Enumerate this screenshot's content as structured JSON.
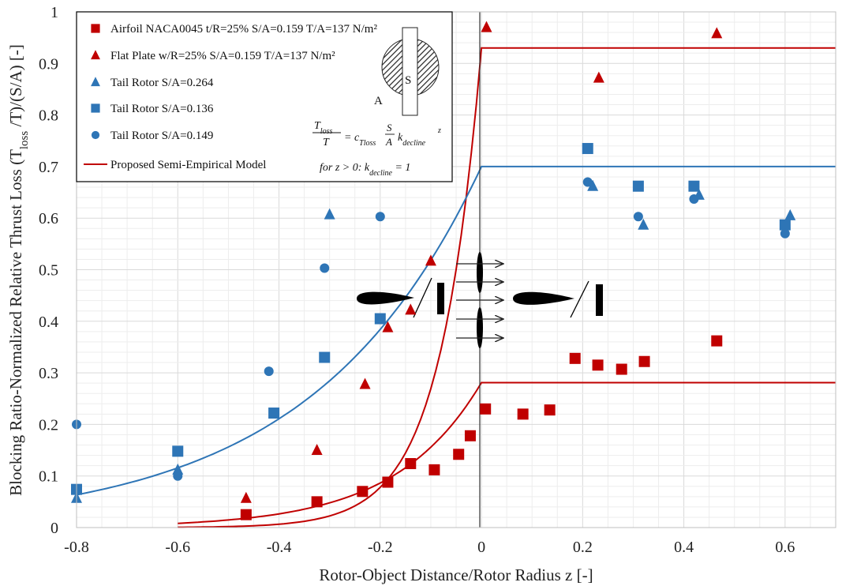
{
  "chart_data": {
    "type": "scatter",
    "xlabel": "Rotor-Object Distance/Rotor Radius z [-]",
    "ylabel_prefix": "Blocking Ratio-Normalized Relative Thrust Loss (T",
    "ylabel_sub": "loss",
    "ylabel_suffix": " /T)/(S/A) [-]",
    "xlim": [
      -0.8,
      0.7
    ],
    "ylim": [
      0,
      1
    ],
    "x_ticks": [
      -0.8,
      -0.6,
      -0.4,
      -0.2,
      0,
      0.2,
      0.4,
      0.6
    ],
    "x_tick_labels": [
      "-0.8",
      "-0.6",
      "-0.4",
      "-0.2",
      "0",
      "0.2",
      "0.4",
      "0.6"
    ],
    "y_ticks": [
      0,
      0.1,
      0.2,
      0.3,
      0.4,
      0.5,
      0.6,
      0.7,
      0.8,
      0.9,
      1
    ],
    "y_tick_labels": [
      "0",
      "0.1",
      "0.2",
      "0.3",
      "0.4",
      "0.5",
      "0.6",
      "0.7",
      "0.8",
      "0.9",
      "1"
    ],
    "grid": true,
    "legend_position": "top-left",
    "colors": {
      "red": "#c00000",
      "blue": "#2e75b6"
    },
    "series": [
      {
        "name": "Airfoil NACA0045 t/R=25% S/A=0.159 T/A=137 N/m²",
        "marker": "square",
        "color": "#c00000",
        "x": [
          -0.465,
          -0.325,
          -0.235,
          -0.185,
          -0.14,
          -0.093,
          -0.045,
          -0.022,
          0.008,
          0.082,
          0.135,
          0.185,
          0.23,
          0.277,
          0.322,
          0.465
        ],
        "y": [
          0.025,
          0.05,
          0.07,
          0.088,
          0.124,
          0.112,
          0.142,
          0.178,
          0.23,
          0.22,
          0.228,
          0.328,
          0.315,
          0.307,
          0.322,
          0.362
        ]
      },
      {
        "name": "Flat Plate w/R=25% S/A=0.159 T/A=137 N/m²",
        "marker": "triangle",
        "color": "#c00000",
        "x": [
          -0.465,
          -0.325,
          -0.23,
          -0.185,
          -0.14,
          -0.1,
          0.01,
          0.232,
          0.465
        ],
        "y": [
          0.057,
          0.15,
          0.278,
          0.388,
          0.422,
          0.517,
          0.97,
          0.872,
          0.958
        ]
      },
      {
        "name": "Tail Rotor S/A=0.264",
        "marker": "triangle",
        "color": "#2e75b6",
        "x": [
          -0.8,
          -0.6,
          -0.3,
          0.22,
          0.32,
          0.43,
          0.61
        ],
        "y": [
          0.057,
          0.112,
          0.607,
          0.662,
          0.587,
          0.645,
          0.605
        ]
      },
      {
        "name": "Tail Rotor S/A=0.136",
        "marker": "square",
        "color": "#2e75b6",
        "x": [
          -0.8,
          -0.6,
          -0.41,
          -0.31,
          -0.2,
          0.21,
          0.31,
          0.42,
          0.6
        ],
        "y": [
          0.074,
          0.148,
          0.222,
          0.33,
          0.405,
          0.735,
          0.662,
          0.662,
          0.587
        ]
      },
      {
        "name": "Tail Rotor S/A=0.149",
        "marker": "circle",
        "color": "#2e75b6",
        "x": [
          -0.8,
          -0.6,
          -0.42,
          -0.31,
          -0.2,
          0.21,
          0.31,
          0.42,
          0.6
        ],
        "y": [
          0.2,
          0.1,
          0.303,
          0.503,
          0.603,
          0.67,
          0.603,
          0.637,
          0.57
        ]
      }
    ],
    "model_curves": {
      "name": "Proposed Semi-Empirical Model",
      "lines": [
        {
          "color": "#c00000",
          "plateau": 0.93,
          "k": 12.4,
          "x_start": -0.6
        },
        {
          "color": "#2e75b6",
          "plateau": 0.7,
          "k": 3.0,
          "x_start": -0.8
        },
        {
          "color": "#c00000",
          "plateau": 0.281,
          "k": 5.9,
          "x_start": -0.6
        }
      ]
    },
    "inset": {
      "label_a": "A",
      "label_s": "S",
      "formula_lhs_num": "T",
      "formula_lhs_num_sub": "loss",
      "formula_lhs_den": "T",
      "formula_eq": "= c",
      "formula_c_sub": "Tloss",
      "formula_frac_num": "S",
      "formula_frac_den": "A",
      "formula_k": "k",
      "formula_k_sub": "decline",
      "formula_k_sup": "z",
      "condition": "for z > 0: k",
      "condition_sub": "decline",
      "condition_tail": " = 1"
    }
  }
}
